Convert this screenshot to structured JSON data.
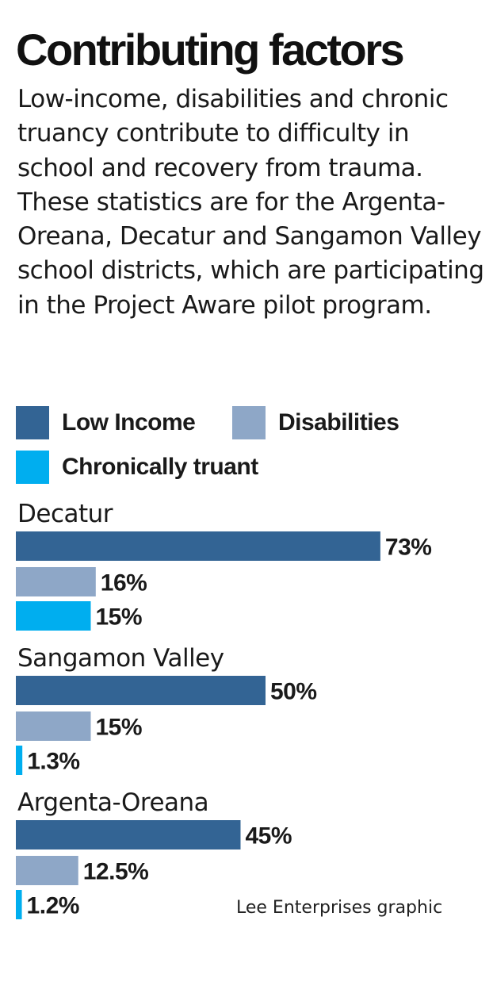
{
  "title": "Contributing factors",
  "description": "Low-income, disabilities and chronic truancy contribute to difficulty in school and recovery from trauma. These statistics are for the Argenta-Oreana, Decatur and Sangamon Valley school districts, which are participating in the Project Aware pilot program.",
  "legend": [
    {
      "label": "Low Income",
      "color": "#336494"
    },
    {
      "label": "Disabilities",
      "color": "#8ea7c7"
    },
    {
      "label": "Chronically truant",
      "color": "#00aeef"
    }
  ],
  "source": "Lee Enterprises graphic",
  "chart_data": {
    "type": "bar",
    "orientation": "horizontal",
    "categories": [
      "Decatur",
      "Sangamon Valley",
      "Argenta-Oreana"
    ],
    "series": [
      {
        "name": "Low Income",
        "color": "#336494",
        "values": [
          73,
          50,
          45
        ],
        "labels": [
          "73%",
          "50%",
          "45%"
        ]
      },
      {
        "name": "Disabilities",
        "color": "#8ea7c7",
        "values": [
          16,
          15,
          12.5
        ],
        "labels": [
          "16%",
          "15%",
          "12.5%"
        ]
      },
      {
        "name": "Chronically truant",
        "color": "#00aeef",
        "values": [
          15,
          1.3,
          1.2
        ],
        "labels": [
          "15%",
          "1.3%",
          "1.2%"
        ]
      }
    ],
    "unit": "%",
    "xlim": [
      0,
      100
    ],
    "grid": false,
    "legend_position": "top"
  }
}
